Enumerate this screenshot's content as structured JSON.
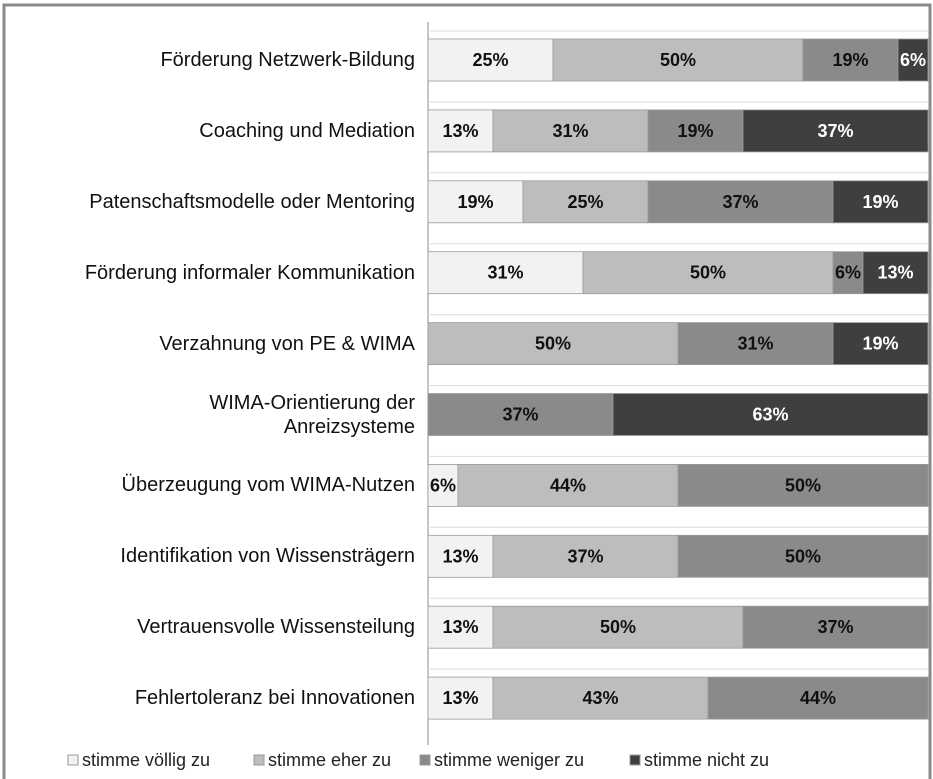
{
  "chart_data": {
    "type": "stacked-bar-horizontal",
    "categories": [
      "Förderung Netzwerk-Bildung",
      "Coaching und Mediation",
      "Patenschaftsmodelle oder Mentoring",
      "Förderung informaler Kommunikation",
      "Verzahnung von PE & WIMA",
      "WIMA-Orientierung der\nAnreizsysteme",
      "Überzeugung vom WIMA-Nutzen",
      "Identifikation von Wissensträgern",
      "Vertrauensvolle Wissensteilung",
      "Fehlertoleranz bei Innovationen"
    ],
    "series": [
      {
        "name": "stimme völlig zu",
        "color": "#f2f2f2",
        "text_color": "#111111",
        "values": [
          25,
          13,
          19,
          31,
          null,
          null,
          6,
          13,
          13,
          13
        ],
        "value_labels": [
          "25%",
          "13%",
          "19%",
          "31%",
          null,
          null,
          "6%",
          "13%",
          "13%",
          "13%"
        ]
      },
      {
        "name": "stimme eher zu",
        "color": "#bdbdbd",
        "text_color": "#111111",
        "values": [
          50,
          31,
          25,
          50,
          50,
          null,
          44,
          37,
          50,
          43
        ],
        "value_labels": [
          "50%",
          "31%",
          "25%",
          "50%",
          "50%",
          null,
          "44%",
          "37%",
          "50%",
          "43%"
        ]
      },
      {
        "name": "stimme weniger zu",
        "color": "#8a8a8a",
        "text_color": "#111111",
        "values": [
          19,
          19,
          37,
          6,
          31,
          37,
          50,
          50,
          37,
          44
        ],
        "value_labels": [
          "19%",
          "19%",
          "37%",
          "6%",
          "31%",
          "37%",
          "50%",
          "50%",
          "37%",
          "44%"
        ]
      },
      {
        "name": "stimme nicht zu",
        "color": "#3f3f3f",
        "text_color": "#ffffff",
        "values": [
          6,
          37,
          19,
          13,
          19,
          63,
          null,
          null,
          null,
          null
        ],
        "value_labels": [
          "6%",
          "37%",
          "19%",
          "13%",
          "19%",
          "63%",
          null,
          null,
          null,
          null
        ]
      }
    ]
  }
}
